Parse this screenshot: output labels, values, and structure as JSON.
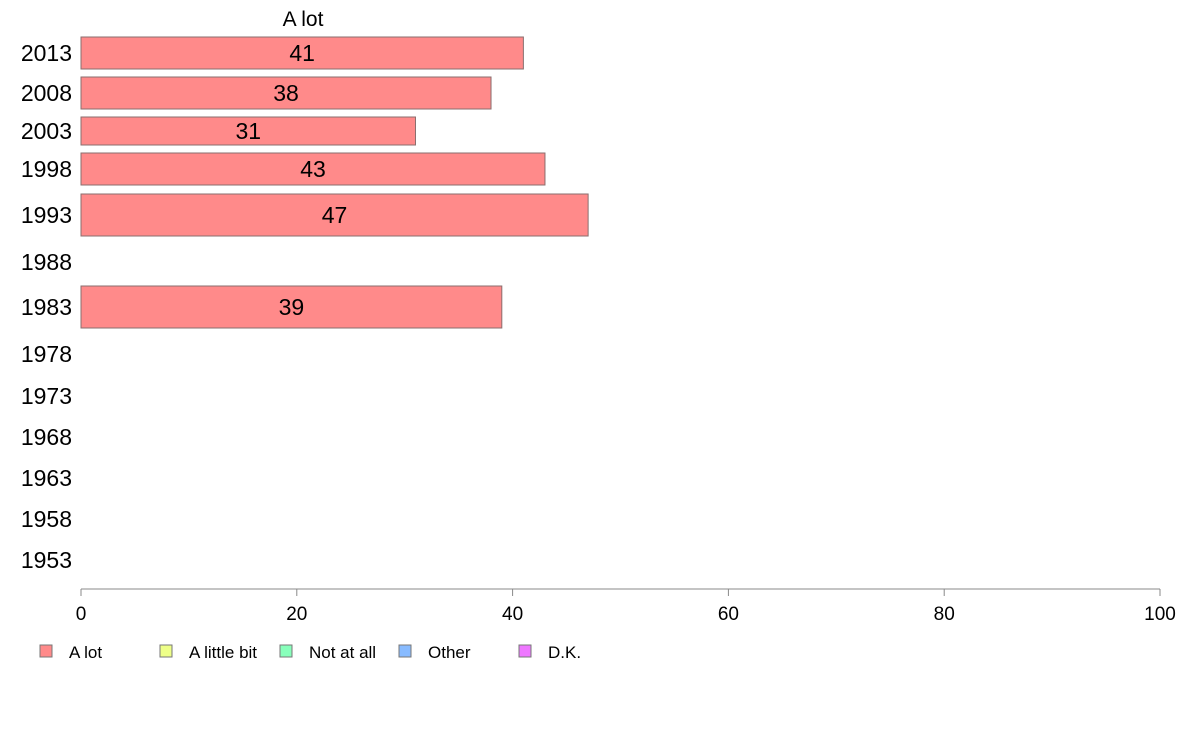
{
  "chart_data": {
    "type": "bar",
    "orientation": "horizontal",
    "series_header": "A lot",
    "categories": [
      "2013",
      "2008",
      "2003",
      "1998",
      "1993",
      "1988",
      "1983",
      "1978",
      "1973",
      "1968",
      "1963",
      "1958",
      "1953"
    ],
    "series": [
      {
        "name": "A lot",
        "color": "#ff8a8a",
        "values": [
          41,
          38,
          31,
          43,
          47,
          null,
          39,
          null,
          null,
          null,
          null,
          null,
          null
        ]
      }
    ],
    "data_labels": [
      "41",
      "38",
      "31",
      "43",
      "47",
      "",
      "39",
      "",
      "",
      "",
      "",
      "",
      ""
    ],
    "xlim": [
      0,
      100
    ],
    "x_ticks": [
      0,
      20,
      40,
      60,
      80,
      100
    ],
    "grid": false,
    "legend": {
      "placement": "bottom-left",
      "items": [
        {
          "label": "A lot",
          "color": "#ff8a8a"
        },
        {
          "label": "A little bit",
          "color": "#eeff88"
        },
        {
          "label": "Not at all",
          "color": "#88ffbb"
        },
        {
          "label": "Other",
          "color": "#88bbff"
        },
        {
          "label": "D.K.",
          "color": "#ee77ff"
        }
      ]
    }
  }
}
